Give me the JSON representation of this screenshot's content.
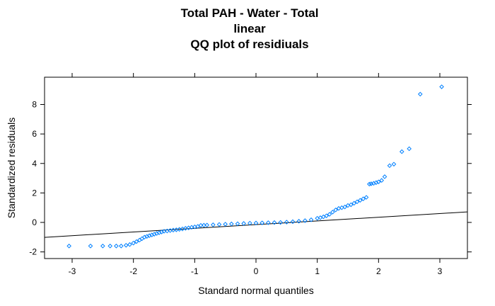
{
  "chart_data": {
    "type": "scatter",
    "title_lines": [
      "Total PAH - Water - Total",
      "linear",
      "QQ plot of residiuals"
    ],
    "xlabel": "Standard normal quantiles",
    "ylabel": "Standardized residuals",
    "xlim": [
      -3.45,
      3.45
    ],
    "ylim": [
      -2.45,
      9.85
    ],
    "x_ticks": [
      -3,
      -2,
      -1,
      0,
      1,
      2,
      3
    ],
    "y_ticks": [
      -2,
      0,
      2,
      4,
      6,
      8
    ],
    "point_color": "#0080ff",
    "line_color": "#000000",
    "reference_line": {
      "intercept": -0.15,
      "slope": 0.25
    },
    "series": [
      {
        "x": [
          -3.05,
          -2.7,
          -2.5,
          -2.38,
          -2.28,
          -2.2,
          -2.12,
          -2.06,
          -2.0,
          -1.95,
          -1.9,
          -1.86,
          -1.82,
          -1.78,
          -1.74,
          -1.7,
          -1.66,
          -1.62,
          -1.58,
          -1.54,
          -1.5,
          -1.45,
          -1.4,
          -1.35,
          -1.3,
          -1.25,
          -1.2,
          -1.15,
          -1.1,
          -1.05,
          -1.0,
          -0.95,
          -0.9,
          -0.85,
          -0.8,
          -0.7,
          -0.6,
          -0.5,
          -0.4,
          -0.3,
          -0.2,
          -0.1,
          0.0,
          0.1,
          0.2,
          0.3,
          0.4,
          0.5,
          0.6,
          0.7,
          0.8,
          0.9,
          1.0,
          1.05,
          1.1,
          1.15,
          1.2,
          1.25,
          1.3,
          1.35,
          1.4,
          1.45,
          1.5,
          1.55,
          1.6,
          1.65,
          1.7,
          1.75,
          1.8,
          1.85,
          1.88,
          1.92,
          1.96,
          2.0,
          2.05,
          2.1,
          2.18,
          2.25,
          2.38,
          2.5,
          2.68,
          3.03
        ],
        "y": [
          -1.6,
          -1.6,
          -1.6,
          -1.6,
          -1.6,
          -1.6,
          -1.55,
          -1.5,
          -1.4,
          -1.3,
          -1.2,
          -1.1,
          -1.0,
          -0.95,
          -0.9,
          -0.85,
          -0.8,
          -0.75,
          -0.7,
          -0.65,
          -0.6,
          -0.58,
          -0.55,
          -0.52,
          -0.5,
          -0.47,
          -0.44,
          -0.4,
          -0.37,
          -0.33,
          -0.3,
          -0.27,
          -0.2,
          -0.19,
          -0.18,
          -0.16,
          -0.14,
          -0.12,
          -0.1,
          -0.09,
          -0.07,
          -0.05,
          -0.04,
          -0.03,
          -0.02,
          -0.01,
          0.0,
          0.02,
          0.05,
          0.08,
          0.12,
          0.18,
          0.28,
          0.32,
          0.38,
          0.45,
          0.55,
          0.7,
          0.85,
          0.95,
          1.0,
          1.05,
          1.15,
          1.2,
          1.3,
          1.4,
          1.5,
          1.6,
          1.7,
          2.6,
          2.62,
          2.65,
          2.7,
          2.75,
          2.85,
          3.1,
          3.85,
          3.95,
          4.8,
          5.0,
          8.7,
          9.2
        ]
      }
    ]
  }
}
